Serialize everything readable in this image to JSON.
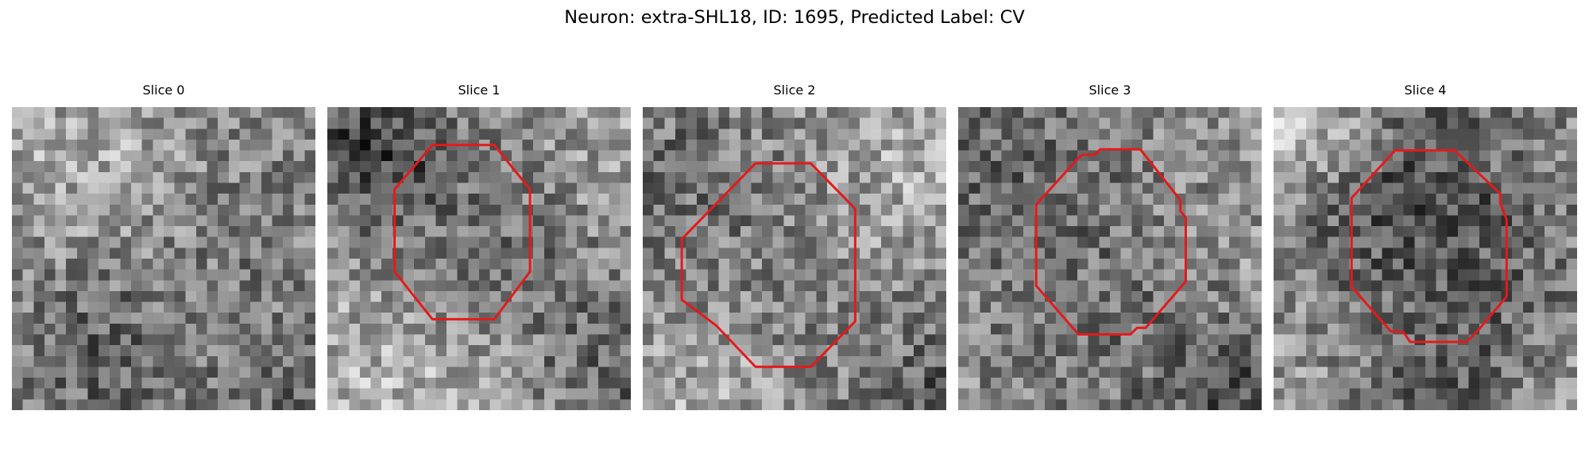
{
  "figure": {
    "title": "Neuron: extra-SHL18, ID: 1695, Predicted Label: CV",
    "contour_color": "#e31a1c",
    "colormap": "grayscale"
  },
  "slices": [
    {
      "title": "Slice 0",
      "has_contour": false
    },
    {
      "title": "Slice 1",
      "has_contour": true
    },
    {
      "title": "Slice 2",
      "has_contour": true
    },
    {
      "title": "Slice 3",
      "has_contour": true
    },
    {
      "title": "Slice 4",
      "has_contour": true
    }
  ]
}
